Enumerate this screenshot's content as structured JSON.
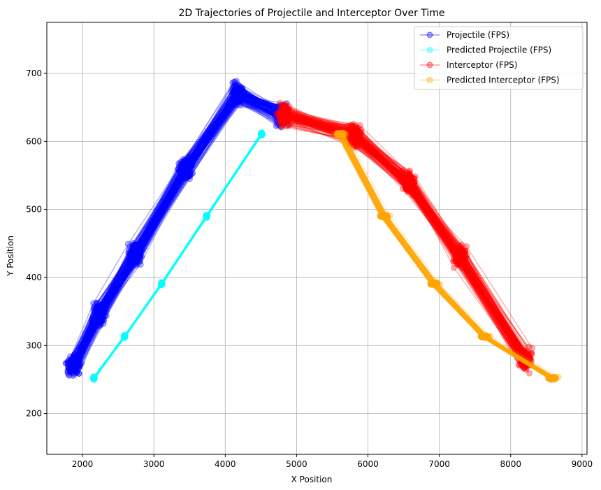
{
  "chart_data": {
    "type": "line",
    "title": "2D Trajectories of Projectile and Interceptor Over Time",
    "xlabel": "X Position",
    "ylabel": "Y Position",
    "xlim": [
      1500,
      9070
    ],
    "ylim": [
      140,
      775
    ],
    "xticks": [
      2000,
      3000,
      4000,
      5000,
      6000,
      7000,
      8000,
      9000
    ],
    "yticks": [
      200,
      300,
      400,
      500,
      600,
      700
    ],
    "grid": true,
    "legend_position": "top-right",
    "series": [
      {
        "name": "Projectile (FPS)",
        "color": "#0000ff",
        "alpha": 0.3,
        "marker": "circle",
        "band_width_x": 240,
        "x": [
          1880,
          2230,
          2740,
          3450,
          4170,
          4800
        ],
        "y": [
          270,
          345,
          435,
          560,
          670,
          640
        ]
      },
      {
        "name": "Predicted Projectile (FPS)",
        "color": "#00ffff",
        "alpha": 0.3,
        "marker": "circle",
        "band_width_x": 30,
        "x": [
          2160,
          2590,
          3110,
          3740,
          4510
        ],
        "y": [
          252,
          313,
          391,
          490,
          611
        ]
      },
      {
        "name": "Interceptor (FPS)",
        "color": "#ff0000",
        "alpha": 0.3,
        "marker": "circle",
        "band_width_x": 240,
        "x": [
          4830,
          5810,
          6570,
          7290,
          8200
        ],
        "y": [
          640,
          610,
          540,
          430,
          280
        ]
      },
      {
        "name": "Predicted Interceptor (FPS)",
        "color": "#ffa500",
        "alpha": 0.3,
        "marker": "circle",
        "band_width_x": 180,
        "x": [
          5620,
          6230,
          6930,
          7640,
          8590
        ],
        "y": [
          611,
          490,
          391,
          313,
          252
        ]
      }
    ]
  }
}
